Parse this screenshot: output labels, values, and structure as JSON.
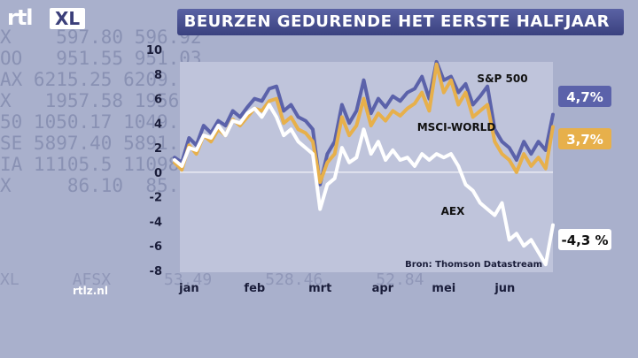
{
  "background_ticker": [
    "X    597.80 596.92",
    "OO   951.55 951.03",
    "AX 6215.25 6209.98",
    "X   1957.58 1956.30",
    "50 1050.17 1049.50",
    "SE 5897.40 5891.20",
    "IA 11105.5 11098.3",
    "X     86.10  85.53"
  ],
  "background_bottom": [
    "XL",
    "AFSX",
    "53.49",
    "528.46",
    "52.84"
  ],
  "logo": {
    "rtl": "rtl",
    "xl": "XL"
  },
  "header": {
    "title": "BEURZEN GEDURENDE HET EERSTE HALFJAAR"
  },
  "site_label": "rtlz.nl",
  "colors": {
    "background": "#a9b0cc",
    "plot_bg": "#bfc4db",
    "sp500": "#5b62aa",
    "msci": "#e7b04b",
    "aex": "#ffffff",
    "title_bar": "#454c8e"
  },
  "chart_data": {
    "type": "line",
    "title": "BEURZEN GEDURENDE HET EERSTE HALFJAAR",
    "xlabel": "",
    "ylabel": "",
    "ylim": [
      -8,
      10
    ],
    "yticks": [
      10,
      8,
      6,
      4,
      2,
      0,
      -2,
      -4,
      -6,
      -8
    ],
    "xlim": [
      0,
      26
    ],
    "month_labels": [
      "jan",
      "feb",
      "mrt",
      "apr",
      "mei",
      "jun"
    ],
    "month_positions": [
      1,
      5.5,
      10,
      14.3,
      18.5,
      22.7
    ],
    "source_label": "Bron: Thomson Datastream",
    "series": [
      {
        "name": "S&P 500",
        "end_label": "4,7%",
        "x": [
          0,
          0.5,
          1,
          1.5,
          2,
          2.5,
          3,
          3.5,
          4,
          4.5,
          5,
          5.5,
          6,
          6.5,
          7,
          7.5,
          8,
          8.5,
          9,
          9.5,
          10,
          10.5,
          11,
          11.5,
          12,
          12.5,
          13,
          13.5,
          14,
          14.5,
          15,
          15.5,
          16,
          16.5,
          17,
          17.5,
          18,
          18.5,
          19,
          19.5,
          20,
          20.5,
          21,
          21.5,
          22,
          22.5,
          23,
          23.5,
          24,
          24.5,
          25,
          25.5,
          26
        ],
        "y": [
          1.2,
          0.8,
          2.8,
          2.2,
          3.8,
          3.2,
          4.2,
          3.8,
          5.0,
          4.5,
          5.3,
          6.0,
          5.8,
          6.8,
          7.0,
          5.0,
          5.5,
          4.5,
          4.2,
          3.5,
          -1.0,
          1.5,
          2.5,
          5.5,
          4.0,
          5.0,
          7.5,
          4.8,
          6.0,
          5.3,
          6.2,
          5.8,
          6.5,
          6.8,
          7.8,
          6.0,
          9.0,
          7.5,
          7.8,
          6.5,
          7.2,
          5.5,
          6.2,
          7.0,
          3.5,
          2.5,
          2.0,
          1.0,
          2.5,
          1.5,
          2.5,
          1.8,
          4.7
        ]
      },
      {
        "name": "MSCI-WORLD",
        "end_label": "3,7%",
        "x": [
          0,
          0.5,
          1,
          1.5,
          2,
          2.5,
          3,
          3.5,
          4,
          4.5,
          5,
          5.5,
          6,
          6.5,
          7,
          7.5,
          8,
          8.5,
          9,
          9.5,
          10,
          10.5,
          11,
          11.5,
          12,
          12.5,
          13,
          13.5,
          14,
          14.5,
          15,
          15.5,
          16,
          16.5,
          17,
          17.5,
          18,
          18.5,
          19,
          19.5,
          20,
          20.5,
          21,
          21.5,
          22,
          22.5,
          23,
          23.5,
          24,
          24.5,
          25,
          25.5,
          26
        ],
        "y": [
          0.8,
          0.2,
          2.2,
          1.5,
          3.0,
          2.5,
          3.5,
          3.0,
          4.3,
          3.8,
          4.5,
          5.2,
          5.0,
          5.8,
          6.0,
          4.0,
          4.5,
          3.5,
          3.2,
          2.5,
          -0.8,
          0.8,
          1.5,
          4.5,
          3.0,
          3.8,
          6.0,
          3.8,
          4.8,
          4.2,
          5.0,
          4.6,
          5.2,
          5.6,
          6.5,
          5.0,
          8.8,
          6.5,
          7.5,
          5.5,
          6.5,
          4.5,
          5.0,
          5.5,
          2.5,
          1.5,
          1.0,
          0.0,
          1.5,
          0.5,
          1.2,
          0.3,
          3.7
        ]
      },
      {
        "name": "AEX",
        "end_label": "-4,3 %",
        "x": [
          0,
          0.5,
          1,
          1.5,
          2,
          2.5,
          3,
          3.5,
          4,
          4.5,
          5,
          5.5,
          6,
          6.5,
          7,
          7.5,
          8,
          8.5,
          9,
          9.5,
          10,
          10.5,
          11,
          11.5,
          12,
          12.5,
          13,
          13.5,
          14,
          14.5,
          15,
          15.5,
          16,
          16.5,
          17,
          17.5,
          18,
          18.5,
          19,
          19.5,
          20,
          20.5,
          21,
          21.5,
          22,
          22.5,
          23,
          23.5,
          24,
          24.5,
          25,
          25.5,
          26
        ],
        "y": [
          1.0,
          0.5,
          2.0,
          1.8,
          3.0,
          2.8,
          3.8,
          3.0,
          4.2,
          4.0,
          4.8,
          5.2,
          4.5,
          5.5,
          4.5,
          3.0,
          3.5,
          2.5,
          2.0,
          1.5,
          -3.0,
          -1.0,
          -0.5,
          2.0,
          0.8,
          1.2,
          3.5,
          1.5,
          2.5,
          1.0,
          1.8,
          1.0,
          1.2,
          0.5,
          1.5,
          1.0,
          1.5,
          1.2,
          1.5,
          0.5,
          -1.0,
          -1.5,
          -2.5,
          -3.0,
          -3.5,
          -2.5,
          -5.5,
          -5.0,
          -6.0,
          -5.5,
          -6.5,
          -7.5,
          -4.3
        ]
      }
    ]
  }
}
